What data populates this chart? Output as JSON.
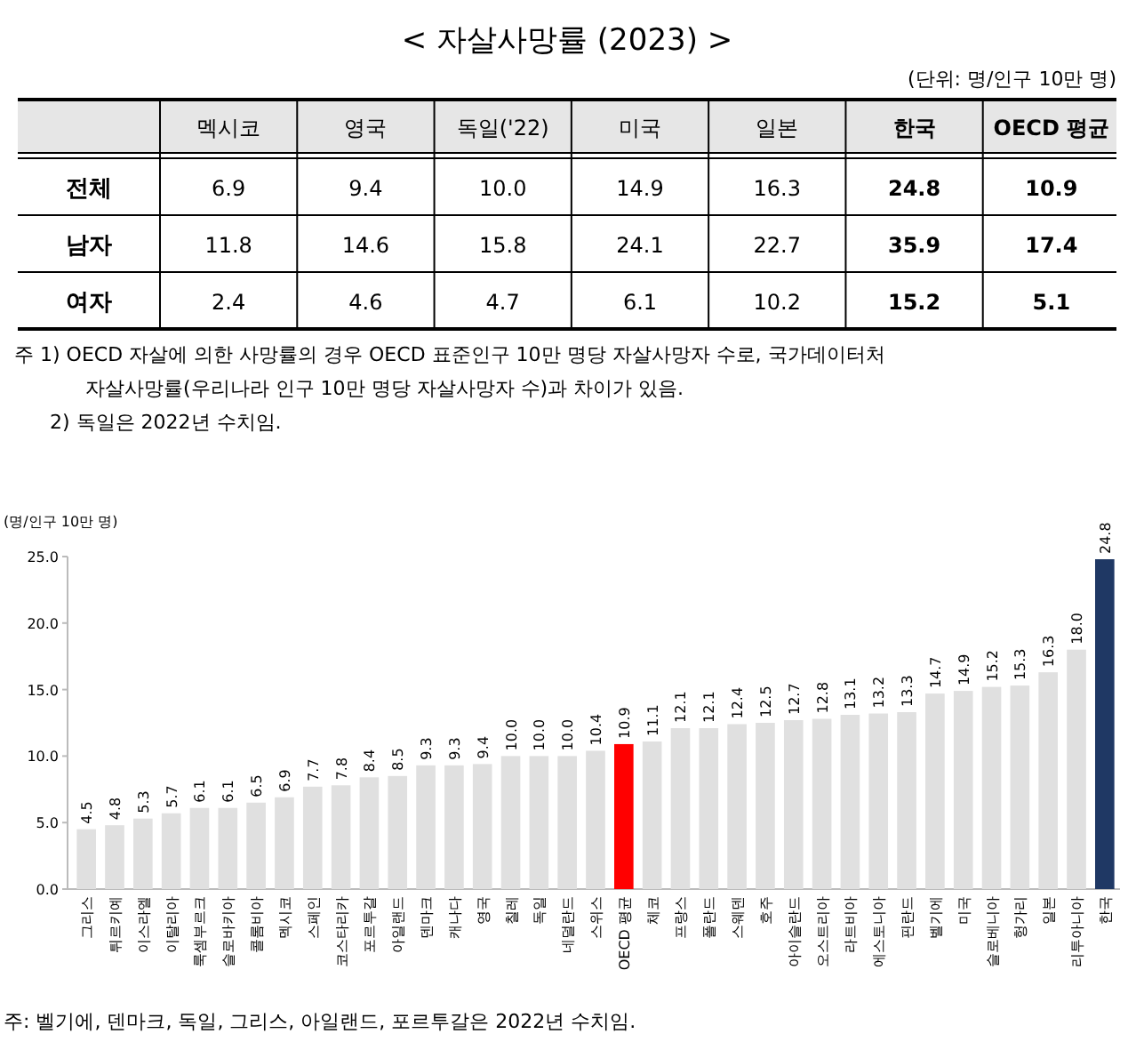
{
  "chart_data": [
    {
      "type": "heatmap",
      "title": "< 자살사망률 (2023) >",
      "subtitle": "(단위: 명/인구 10만 명)",
      "categories": [
        "멕시코",
        "영국",
        "독일('22)",
        "미국",
        "일본",
        "한국",
        "OECD 평균"
      ],
      "y_categories": [
        "전체",
        "남자",
        "여자"
      ],
      "cells": [
        [
          6.9,
          9.4,
          10.0,
          14.9,
          16.3,
          24.8,
          10.9
        ],
        [
          11.8,
          14.6,
          15.8,
          24.1,
          22.7,
          35.9,
          17.4
        ],
        [
          2.4,
          4.6,
          4.7,
          6.1,
          10.2,
          15.2,
          5.1
        ]
      ],
      "cell_labels": [
        [
          "6.9",
          "9.4",
          "10.0",
          "14.9",
          "16.3",
          "24.8",
          "10.9"
        ],
        [
          "11.8",
          "14.6",
          "15.8",
          "24.1",
          "22.7",
          "35.9",
          "17.4"
        ],
        [
          "2.4",
          "4.6",
          "4.7",
          "6.1",
          "10.2",
          "15.2",
          "5.1"
        ]
      ],
      "annotations": [
        "주 1) OECD 자살에 의한 사망률의 경우 OECD 표준인구 10만 명당 자살사망자 수로, 국가데이터처",
        "자살사망률(우리나라 인구 10만 명당 자살사망자 수)과 차이가 있음.",
        "2) 독일은 2022년 수치임."
      ]
    },
    {
      "type": "bar",
      "ylabel": "(명/인구 10만 명)",
      "categories": [
        "그리스",
        "튀르키예",
        "이스라엘",
        "이탈리아",
        "룩셈부르크",
        "슬로바키아",
        "콜롬비아",
        "멕시코",
        "스페인",
        "코스타리카",
        "포르투갈",
        "아일랜드",
        "덴마크",
        "캐나다",
        "영국",
        "칠레",
        "독일",
        "네덜란드",
        "스위스",
        "OECD 평균",
        "체코",
        "프랑스",
        "폴란드",
        "스웨덴",
        "호주",
        "아이슬란드",
        "오스트리아",
        "라트비아",
        "에스토니아",
        "핀란드",
        "벨기에",
        "미국",
        "슬로베니아",
        "헝가리",
        "일본",
        "리투아니아",
        "한국"
      ],
      "values": [
        4.5,
        4.8,
        5.3,
        5.7,
        6.1,
        6.1,
        6.5,
        6.9,
        7.7,
        7.8,
        8.4,
        8.5,
        9.3,
        9.3,
        9.4,
        10.0,
        10.0,
        10.0,
        10.4,
        10.9,
        11.1,
        12.1,
        12.1,
        12.4,
        12.5,
        12.7,
        12.8,
        13.1,
        13.2,
        13.3,
        14.7,
        14.9,
        15.2,
        15.3,
        16.3,
        18.0,
        24.8
      ],
      "value_labels": [
        "4.5",
        "4.8",
        "5.3",
        "5.7",
        "6.1",
        "6.1",
        "6.5",
        "6.9",
        "7.7",
        "7.8",
        "8.4",
        "8.5",
        "9.3",
        "9.3",
        "9.4",
        "10.0",
        "10.0",
        "10.0",
        "10.4",
        "10.9",
        "11.1",
        "12.1",
        "12.1",
        "12.4",
        "12.5",
        "12.7",
        "12.8",
        "13.1",
        "13.2",
        "13.3",
        "14.7",
        "14.9",
        "15.2",
        "15.3",
        "16.3",
        "18.0",
        "24.8"
      ],
      "colors": [
        "#e0e0e0",
        "#e0e0e0",
        "#e0e0e0",
        "#e0e0e0",
        "#e0e0e0",
        "#e0e0e0",
        "#e0e0e0",
        "#e0e0e0",
        "#e0e0e0",
        "#e0e0e0",
        "#e0e0e0",
        "#e0e0e0",
        "#e0e0e0",
        "#e0e0e0",
        "#e0e0e0",
        "#e0e0e0",
        "#e0e0e0",
        "#e0e0e0",
        "#e0e0e0",
        "#ff0000",
        "#e0e0e0",
        "#e0e0e0",
        "#e0e0e0",
        "#e0e0e0",
        "#e0e0e0",
        "#e0e0e0",
        "#e0e0e0",
        "#e0e0e0",
        "#e0e0e0",
        "#e0e0e0",
        "#e0e0e0",
        "#e0e0e0",
        "#e0e0e0",
        "#e0e0e0",
        "#e0e0e0",
        "#e0e0e0",
        "#1f3864"
      ],
      "ylim": [
        0,
        25
      ],
      "yticks": [
        {
          "value": 0,
          "label": "0.0"
        },
        {
          "value": 5,
          "label": "5.0"
        },
        {
          "value": 10,
          "label": "10.0"
        },
        {
          "value": 15,
          "label": "15.0"
        },
        {
          "value": 20,
          "label": "20.0"
        },
        {
          "value": 25,
          "label": "25.0"
        }
      ],
      "annotations": [
        "주: 벨기에, 덴마크, 독일, 그리스, 아일랜드, 포르투갈은 2022년 수치임."
      ]
    }
  ]
}
